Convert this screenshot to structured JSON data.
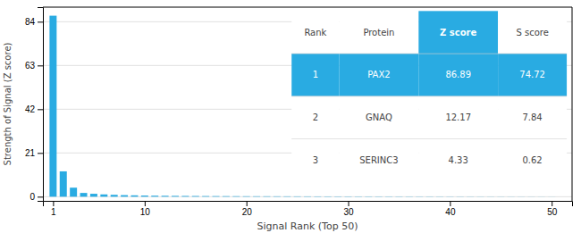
{
  "chart_data": {
    "type": "bar",
    "xlabel": "Signal Rank (Top 50)",
    "ylabel": "Strength of Signal (Z score)",
    "x": [
      1,
      2,
      3,
      4,
      5,
      6,
      7,
      8,
      9,
      10,
      11,
      12,
      13,
      14,
      15,
      16,
      17,
      18,
      19,
      20,
      21,
      22,
      23,
      24,
      25,
      26,
      27,
      28,
      29,
      30,
      31,
      32,
      33,
      34,
      35,
      36,
      37,
      38,
      39,
      40,
      41,
      42,
      43,
      44,
      45,
      46,
      47,
      48,
      49,
      50
    ],
    "values": [
      86.89,
      12.17,
      4.33,
      1.8,
      1.4,
      1.1,
      0.9,
      0.75,
      0.65,
      0.55,
      0.48,
      0.43,
      0.39,
      0.36,
      0.33,
      0.3,
      0.28,
      0.26,
      0.24,
      0.22,
      0.21,
      0.2,
      0.19,
      0.18,
      0.17,
      0.16,
      0.15,
      0.145,
      0.14,
      0.135,
      0.13,
      0.125,
      0.12,
      0.115,
      0.11,
      0.105,
      0.1,
      0.095,
      0.09,
      0.085,
      0.08,
      0.075,
      0.07,
      0.065,
      0.06,
      0.055,
      0.05,
      0.045,
      0.04,
      0.035
    ],
    "color": "#29abe2",
    "xlim": [
      0.0,
      52
    ],
    "xticks": [
      1,
      10,
      20,
      30,
      40,
      50
    ],
    "ylim": [
      -2,
      91
    ],
    "yticks": [
      0,
      21,
      42,
      63,
      84
    ],
    "grid": true,
    "table": {
      "columns": [
        {
          "header": "Rank"
        },
        {
          "header": "Protein"
        },
        {
          "header": "Z score",
          "color": "#29abe2"
        },
        {
          "header": "S score"
        }
      ],
      "rows": [
        {
          "cells": [
            "1",
            "PAX2",
            "86.89",
            "74.72"
          ],
          "color": "#29abe2"
        },
        {
          "cells": [
            "2",
            "GNAQ",
            "12.17",
            "7.84"
          ]
        },
        {
          "cells": [
            "3",
            "SERINC3",
            "4.33",
            "0.62"
          ]
        }
      ]
    }
  }
}
